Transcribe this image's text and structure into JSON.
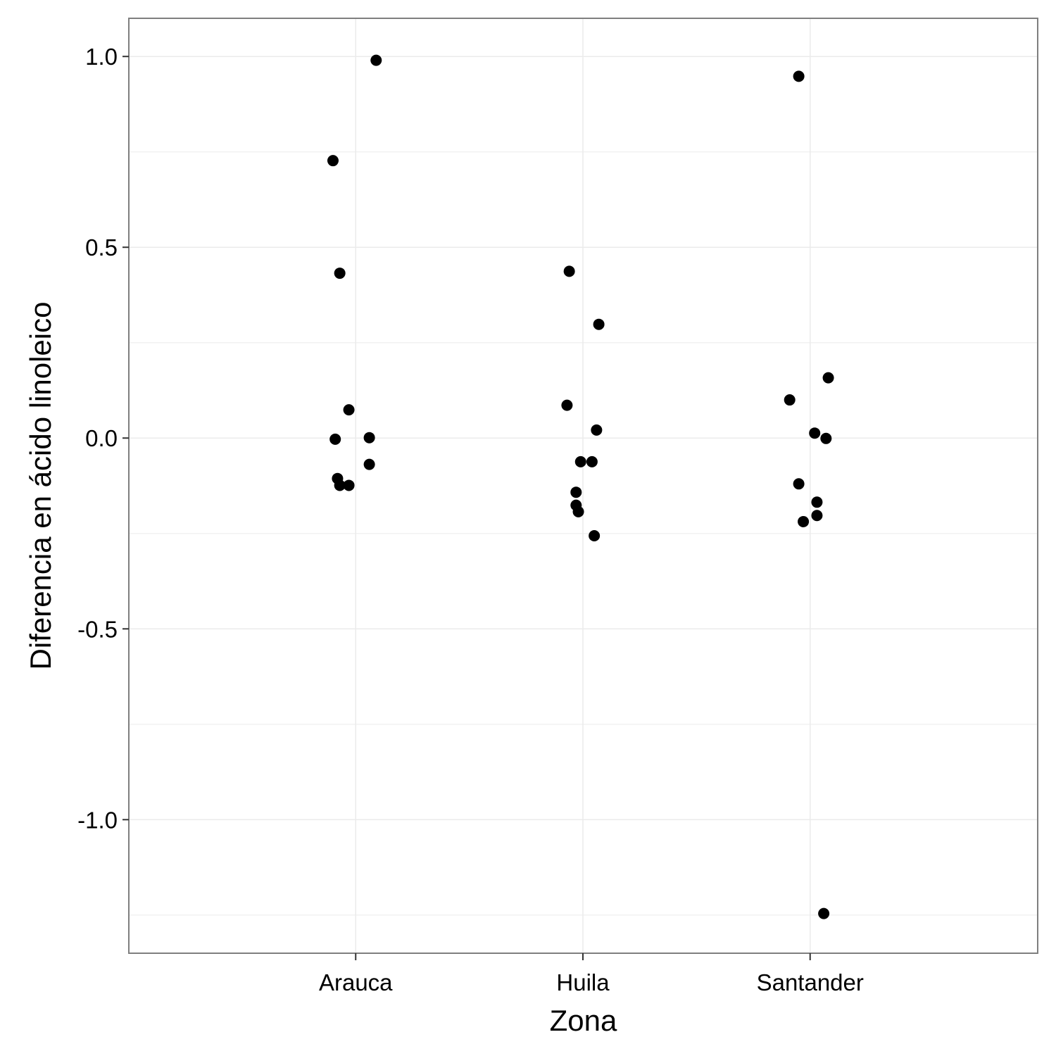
{
  "chart_data": {
    "type": "scatter",
    "xlabel": "Zona",
    "ylabel": "Diferencia en ácido linoleico",
    "categories": [
      "Arauca",
      "Huila",
      "Santander"
    ],
    "ylim": [
      -1.35,
      1.1
    ],
    "yticks": [
      1.0,
      0.5,
      0.0,
      -0.5,
      -1.0
    ],
    "ytick_labels": [
      "1.0",
      "0.5",
      "0.0",
      "-0.5",
      "-1.0"
    ],
    "grid": true,
    "point_color": "#000000",
    "points": [
      {
        "category": "Arauca",
        "jitter": 0.09,
        "y": 0.99
      },
      {
        "category": "Arauca",
        "jitter": -0.1,
        "y": 0.727
      },
      {
        "category": "Arauca",
        "jitter": -0.07,
        "y": 0.432
      },
      {
        "category": "Arauca",
        "jitter": -0.03,
        "y": 0.074
      },
      {
        "category": "Arauca",
        "jitter": -0.09,
        "y": -0.003
      },
      {
        "category": "Arauca",
        "jitter": 0.06,
        "y": 0.001
      },
      {
        "category": "Arauca",
        "jitter": 0.06,
        "y": -0.069
      },
      {
        "category": "Arauca",
        "jitter": -0.08,
        "y": -0.106
      },
      {
        "category": "Arauca",
        "jitter": -0.07,
        "y": -0.124
      },
      {
        "category": "Arauca",
        "jitter": -0.03,
        "y": -0.124
      },
      {
        "category": "Huila",
        "jitter": -0.06,
        "y": 0.437
      },
      {
        "category": "Huila",
        "jitter": 0.07,
        "y": 0.298
      },
      {
        "category": "Huila",
        "jitter": -0.07,
        "y": 0.086
      },
      {
        "category": "Huila",
        "jitter": 0.06,
        "y": 0.021
      },
      {
        "category": "Huila",
        "jitter": -0.01,
        "y": -0.062
      },
      {
        "category": "Huila",
        "jitter": 0.04,
        "y": -0.062
      },
      {
        "category": "Huila",
        "jitter": -0.03,
        "y": -0.142
      },
      {
        "category": "Huila",
        "jitter": -0.03,
        "y": -0.176
      },
      {
        "category": "Huila",
        "jitter": -0.02,
        "y": -0.193
      },
      {
        "category": "Huila",
        "jitter": 0.05,
        "y": -0.256
      },
      {
        "category": "Santander",
        "jitter": -0.05,
        "y": 0.948
      },
      {
        "category": "Santander",
        "jitter": 0.08,
        "y": 0.158
      },
      {
        "category": "Santander",
        "jitter": -0.09,
        "y": 0.1
      },
      {
        "category": "Santander",
        "jitter": 0.02,
        "y": 0.013
      },
      {
        "category": "Santander",
        "jitter": 0.07,
        "y": -0.001
      },
      {
        "category": "Santander",
        "jitter": -0.05,
        "y": -0.12
      },
      {
        "category": "Santander",
        "jitter": 0.03,
        "y": -0.168
      },
      {
        "category": "Santander",
        "jitter": 0.03,
        "y": -0.203
      },
      {
        "category": "Santander",
        "jitter": -0.03,
        "y": -0.219
      },
      {
        "category": "Santander",
        "jitter": 0.06,
        "y": -1.246
      }
    ]
  }
}
